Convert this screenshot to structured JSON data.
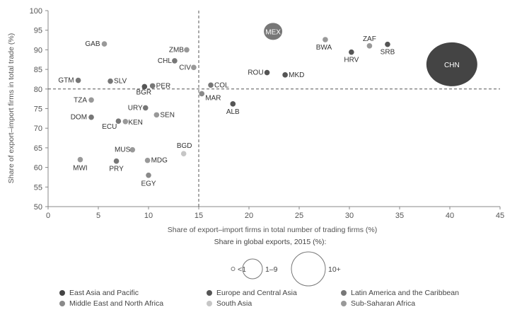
{
  "chart_data": {
    "type": "scatter",
    "xlabel": "Share of export–import firms in total number of trading firms (%)",
    "ylabel": "Share of export–import firms in total trade (%)",
    "xlim": [
      0,
      45
    ],
    "ylim": [
      50,
      100
    ],
    "xticks": [
      "0",
      "5",
      "10",
      "15",
      "20",
      "25",
      "30",
      "35",
      "40",
      "45"
    ],
    "yticks": [
      "50",
      "55",
      "60",
      "65",
      "70",
      "75",
      "80",
      "85",
      "90",
      "95",
      "100"
    ],
    "reference_lines": {
      "x": 15,
      "y": 80
    },
    "size_legend": {
      "title": "Share in global exports, 2015 (%):",
      "items": [
        {
          "label": "<1",
          "size": "small"
        },
        {
          "label": "1–9",
          "size": "medium"
        },
        {
          "label": "10+",
          "size": "large"
        }
      ]
    },
    "regions": [
      {
        "key": "eap",
        "name": "East Asia and Pacific",
        "color": "#444444"
      },
      {
        "key": "eca",
        "name": "Europe and Central Asia",
        "color": "#555555"
      },
      {
        "key": "lac",
        "name": "Latin America and the Caribbean",
        "color": "#777777"
      },
      {
        "key": "mena",
        "name": "Middle East and North Africa",
        "color": "#8a8a8a"
      },
      {
        "key": "sa",
        "name": "South Asia",
        "color": "#c6c6c6"
      },
      {
        "key": "ssa",
        "name": "Sub-Saharan Africa",
        "color": "#999999"
      }
    ],
    "points": [
      {
        "label": "GAB",
        "x": 5.6,
        "y": 91.5,
        "region": "ssa",
        "size": "small"
      },
      {
        "label": "ZMB",
        "x": 13.8,
        "y": 90.0,
        "region": "ssa",
        "size": "small"
      },
      {
        "label": "CHL",
        "x": 12.6,
        "y": 87.2,
        "region": "lac",
        "size": "small"
      },
      {
        "label": "CIV",
        "x": 14.5,
        "y": 85.5,
        "region": "ssa",
        "size": "small"
      },
      {
        "label": "GTM",
        "x": 3.0,
        "y": 82.2,
        "region": "lac",
        "size": "small"
      },
      {
        "label": "SLV",
        "x": 6.2,
        "y": 82.0,
        "region": "lac",
        "size": "small"
      },
      {
        "label": "BGR",
        "x": 9.6,
        "y": 80.6,
        "region": "eca",
        "size": "small"
      },
      {
        "label": "PER",
        "x": 10.4,
        "y": 80.8,
        "region": "lac",
        "size": "small"
      },
      {
        "label": "COL",
        "x": 16.2,
        "y": 81.0,
        "region": "lac",
        "size": "small"
      },
      {
        "label": "MAR",
        "x": 15.3,
        "y": 78.8,
        "region": "mena",
        "size": "small"
      },
      {
        "label": "TZA",
        "x": 4.3,
        "y": 77.2,
        "region": "ssa",
        "size": "small"
      },
      {
        "label": "ALB",
        "x": 18.4,
        "y": 76.2,
        "region": "eca",
        "size": "small"
      },
      {
        "label": "URY",
        "x": 9.7,
        "y": 75.2,
        "region": "lac",
        "size": "small"
      },
      {
        "label": "SEN",
        "x": 10.8,
        "y": 73.4,
        "region": "ssa",
        "size": "small"
      },
      {
        "label": "DOM",
        "x": 4.3,
        "y": 72.8,
        "region": "lac",
        "size": "small"
      },
      {
        "label": "ECU",
        "x": 7.0,
        "y": 71.8,
        "region": "lac",
        "size": "small"
      },
      {
        "label": "KEN",
        "x": 7.7,
        "y": 71.7,
        "region": "ssa",
        "size": "small"
      },
      {
        "label": "MUS",
        "x": 8.4,
        "y": 64.5,
        "region": "ssa",
        "size": "small"
      },
      {
        "label": "BGD",
        "x": 13.5,
        "y": 63.5,
        "region": "sa",
        "size": "small"
      },
      {
        "label": "MWI",
        "x": 3.2,
        "y": 62.0,
        "region": "ssa",
        "size": "small"
      },
      {
        "label": "PRY",
        "x": 6.8,
        "y": 61.6,
        "region": "lac",
        "size": "small"
      },
      {
        "label": "MDG",
        "x": 9.9,
        "y": 61.8,
        "region": "ssa",
        "size": "small"
      },
      {
        "label": "EGY",
        "x": 10.0,
        "y": 58.0,
        "region": "mena",
        "size": "small"
      },
      {
        "label": "ROU",
        "x": 21.8,
        "y": 84.2,
        "region": "eca",
        "size": "small"
      },
      {
        "label": "MKD",
        "x": 23.6,
        "y": 83.6,
        "region": "eca",
        "size": "small"
      },
      {
        "label": "BWA",
        "x": 27.6,
        "y": 92.6,
        "region": "ssa",
        "size": "small"
      },
      {
        "label": "HRV",
        "x": 30.2,
        "y": 89.4,
        "region": "eca",
        "size": "small"
      },
      {
        "label": "ZAF",
        "x": 32.0,
        "y": 91.0,
        "region": "ssa",
        "size": "small"
      },
      {
        "label": "SRB",
        "x": 33.8,
        "y": 91.4,
        "region": "eca",
        "size": "small"
      },
      {
        "label": "MEX",
        "x": 22.4,
        "y": 94.7,
        "region": "lac",
        "size": "medium"
      },
      {
        "label": "CHN",
        "x": 40.2,
        "y": 86.3,
        "region": "eap",
        "size": "large"
      }
    ]
  }
}
